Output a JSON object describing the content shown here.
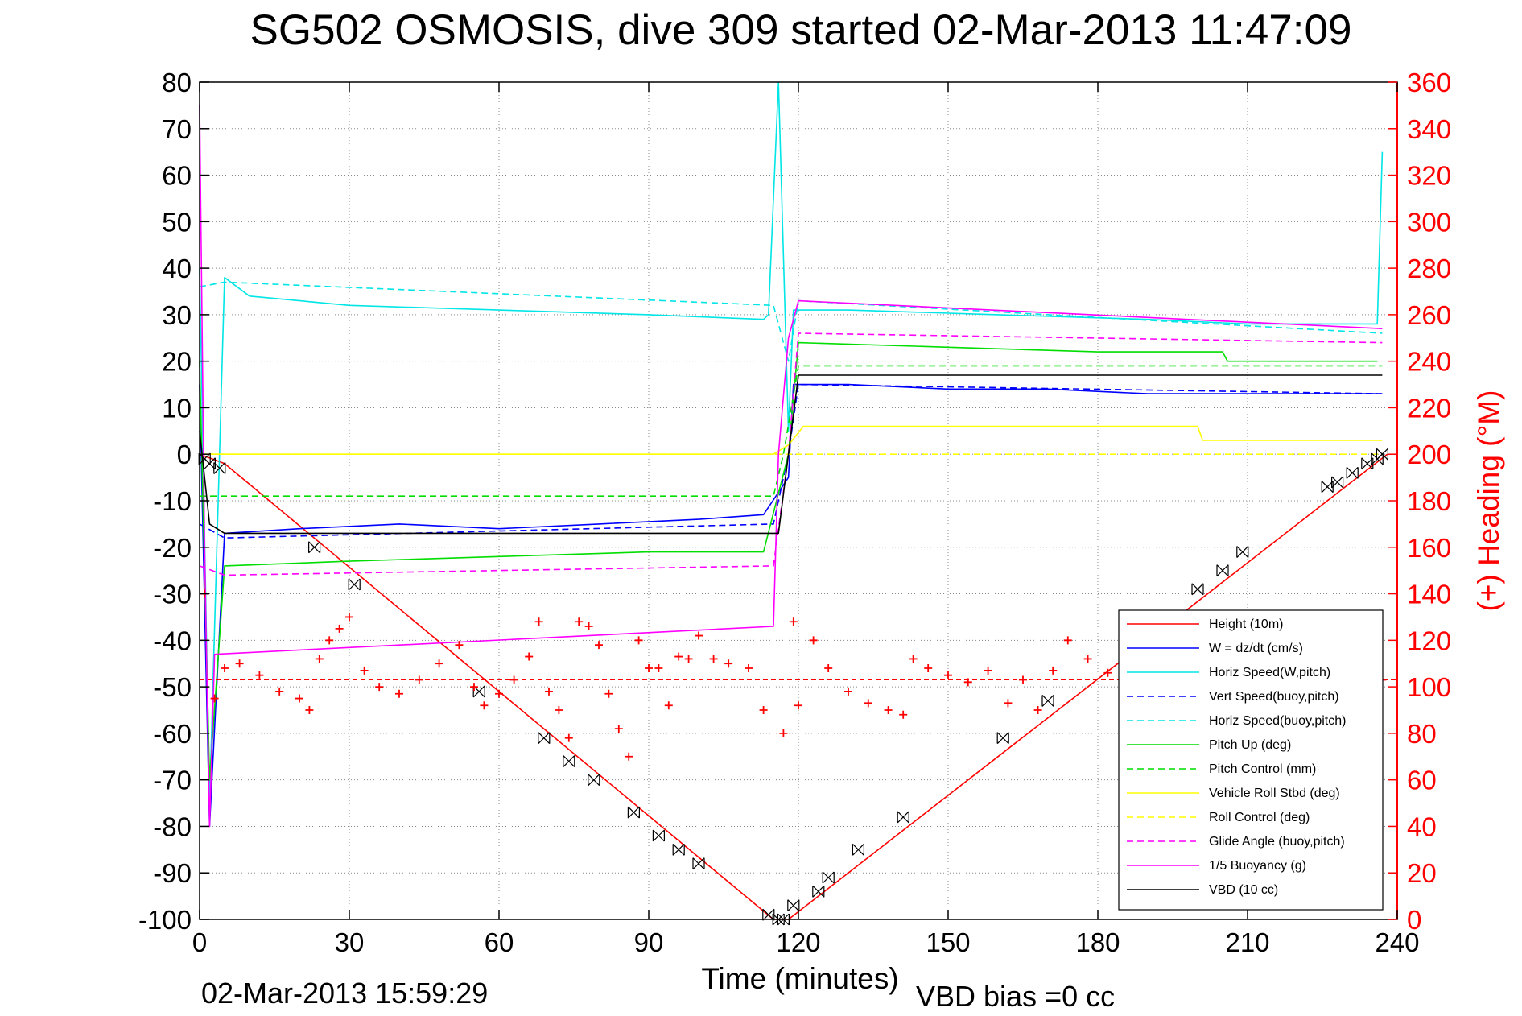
{
  "chart_data": {
    "type": "line",
    "title": "SG502 OSMOSIS, dive 309 started 02-Mar-2013 11:47:09",
    "xlabel": "Time (minutes)",
    "ylabel": "",
    "y2label": "(+) Heading (°M)",
    "timestamp": "02-Mar-2013 15:59:29",
    "vbd_bias": "VBD bias =0 cc",
    "xlim": [
      0,
      240
    ],
    "ylim": [
      -100,
      80
    ],
    "y2lim": [
      0,
      360
    ],
    "grid": true,
    "legend_position": "bottom-right",
    "xticks": [
      0,
      30,
      60,
      90,
      120,
      150,
      180,
      210,
      240
    ],
    "yticks": [
      -100,
      -90,
      -80,
      -70,
      -60,
      -50,
      -40,
      -30,
      -20,
      -10,
      0,
      10,
      20,
      30,
      40,
      50,
      60,
      70,
      80
    ],
    "y2ticks": [
      0,
      20,
      40,
      60,
      80,
      100,
      120,
      140,
      160,
      180,
      200,
      220,
      240,
      260,
      280,
      300,
      320,
      340,
      360
    ],
    "colors": {
      "axis": "#000000",
      "right_axis": "#ff0000",
      "grid": "#888888"
    },
    "series": [
      {
        "name": "Height (10m)",
        "color": "#ff0000",
        "style": "solid",
        "x": [
          0,
          5,
          115,
          118,
          238
        ],
        "y": [
          0,
          -2,
          -100,
          -100,
          0
        ]
      },
      {
        "name": "W = dz/dt (cm/s)",
        "color": "#0000ff",
        "style": "solid",
        "x": [
          0,
          2,
          5,
          20,
          40,
          60,
          80,
          100,
          113,
          118,
          119,
          130,
          150,
          170,
          190,
          210,
          236
        ],
        "y": [
          15,
          -80,
          -17,
          -16,
          -15,
          -16,
          -15,
          -14,
          -13,
          -5,
          15,
          15,
          14,
          14,
          13,
          13,
          13
        ]
      },
      {
        "name": "Horiz Speed(W,pitch)",
        "color": "#00e5e5",
        "style": "solid",
        "x": [
          0,
          2,
          5,
          10,
          30,
          60,
          90,
          113,
          114,
          116,
          118,
          119,
          130,
          160,
          190,
          210,
          236,
          237
        ],
        "y": [
          40,
          -75,
          38,
          34,
          32,
          31,
          30,
          29,
          30,
          80,
          5,
          31,
          31,
          30,
          29,
          28,
          28,
          65
        ]
      },
      {
        "name": "Vert Speed(buoy,pitch)",
        "color": "#0000ff",
        "style": "dashed",
        "x": [
          0,
          5,
          115,
          118,
          120,
          237
        ],
        "y": [
          -15,
          -18,
          -15,
          0,
          15,
          13
        ]
      },
      {
        "name": "Horiz Speed(buoy,pitch)",
        "color": "#00e5e5",
        "style": "dashed",
        "x": [
          0,
          5,
          115,
          118,
          120,
          237
        ],
        "y": [
          36,
          37,
          32,
          20,
          33,
          26
        ]
      },
      {
        "name": "Pitch Up (deg)",
        "color": "#00dd00",
        "style": "solid",
        "x": [
          0,
          2,
          5,
          30,
          60,
          90,
          113,
          118,
          120,
          150,
          180,
          205,
          206,
          236
        ],
        "y": [
          20,
          -70,
          -24,
          -23,
          -22,
          -21,
          -21,
          0,
          24,
          23,
          22,
          22,
          20,
          20
        ]
      },
      {
        "name": "Pitch Control (mm)",
        "color": "#00dd00",
        "style": "dashed",
        "x": [
          0,
          5,
          115,
          117,
          120,
          237
        ],
        "y": [
          -9,
          -9,
          -9,
          0,
          19,
          19
        ]
      },
      {
        "name": "Vehicle Roll Stbd (deg)",
        "color": "#ffff00",
        "style": "solid",
        "x": [
          0,
          5,
          115,
          118,
          121,
          200,
          201,
          237
        ],
        "y": [
          0,
          0,
          0,
          2,
          6,
          6,
          3,
          3
        ]
      },
      {
        "name": "Roll Control (deg)",
        "color": "#ffff00",
        "style": "dashed",
        "x": [
          0,
          5,
          115,
          118,
          237
        ],
        "y": [
          0,
          0,
          0,
          0,
          0
        ]
      },
      {
        "name": "Glide Angle (buoy,pitch)",
        "color": "#ff00ff",
        "style": "dashed",
        "x": [
          0,
          5,
          115,
          118,
          120,
          237
        ],
        "y": [
          -24,
          -26,
          -24,
          0,
          26,
          24
        ]
      },
      {
        "name": "1/5 Buoyancy (g)",
        "color": "#ff00ff",
        "style": "solid",
        "x": [
          0,
          1,
          2,
          3,
          115,
          116,
          118,
          120,
          237
        ],
        "y": [
          75,
          -20,
          -80,
          -43,
          -37,
          0,
          25,
          33,
          27
        ]
      },
      {
        "name": "VBD (10 cc)",
        "color": "#000000",
        "style": "solid",
        "x": [
          0,
          2,
          5,
          116,
          118,
          120,
          237
        ],
        "y": [
          5,
          -15,
          -17,
          -17,
          0,
          17,
          17
        ]
      }
    ],
    "heading": {
      "name": "Heading (°M)",
      "color": "#ff0000",
      "marker": "+",
      "mean": 103,
      "x": [
        1,
        3,
        5,
        8,
        12,
        16,
        20,
        22,
        24,
        26,
        28,
        30,
        33,
        36,
        40,
        44,
        48,
        52,
        55,
        57,
        60,
        63,
        66,
        68,
        70,
        72,
        74,
        76,
        78,
        80,
        82,
        84,
        86,
        88,
        90,
        92,
        94,
        96,
        98,
        100,
        103,
        106,
        110,
        113,
        117,
        119,
        120,
        123,
        126,
        130,
        134,
        138,
        141,
        143,
        146,
        150,
        154,
        158,
        162,
        165,
        168,
        171,
        174,
        178,
        182,
        186,
        190,
        194,
        198,
        202,
        206,
        210,
        214,
        218,
        222,
        226,
        230,
        234,
        237
      ],
      "y": [
        140,
        95,
        108,
        110,
        105,
        98,
        95,
        90,
        112,
        120,
        125,
        130,
        107,
        100,
        97,
        103,
        110,
        118,
        100,
        92,
        97,
        103,
        113,
        128,
        98,
        90,
        78,
        128,
        126,
        118,
        97,
        82,
        70,
        120,
        108,
        108,
        92,
        113,
        112,
        122,
        112,
        110,
        108,
        90,
        80,
        128,
        92,
        120,
        108,
        98,
        93,
        90,
        88,
        112,
        108,
        105,
        102,
        107,
        93,
        103,
        90,
        107,
        120,
        112,
        106,
        104,
        102,
        101,
        100,
        104,
        103,
        102,
        102,
        101,
        103,
        103,
        102,
        104,
        103
      ]
    },
    "height_markers": {
      "x": [
        1,
        2,
        4,
        23,
        31,
        56,
        69,
        74,
        79,
        87,
        92,
        96,
        100,
        114,
        116,
        117,
        119,
        124,
        126,
        132,
        141,
        161,
        170,
        200,
        205,
        209,
        226,
        228,
        231,
        234,
        236,
        237
      ],
      "y": [
        -1,
        -2,
        -3,
        -20,
        -28,
        -51,
        -61,
        -66,
        -70,
        -77,
        -82,
        -85,
        -88,
        -99,
        -100,
        -100,
        -97,
        -94,
        -91,
        -85,
        -78,
        -61,
        -53,
        -29,
        -25,
        -21,
        -7,
        -6,
        -4,
        -2,
        -1,
        0
      ]
    }
  }
}
